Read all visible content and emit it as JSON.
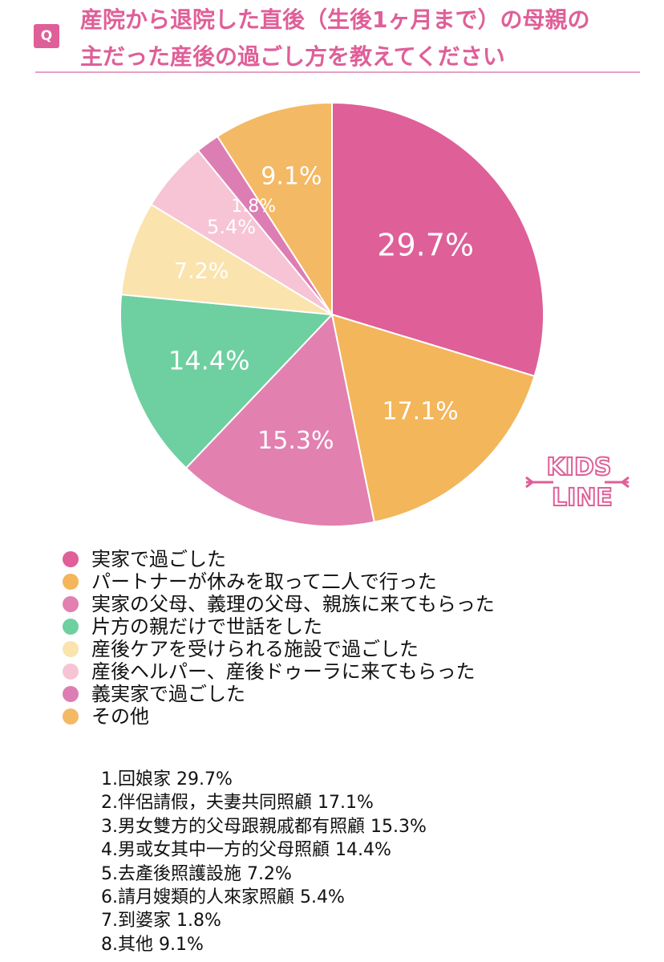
{
  "badge": "Q",
  "title_line1": "産院から退院した直後（生後1ヶ月まで）の母親の",
  "title_line2": "主だった産後の過ごし方を教えてください",
  "logo": {
    "line1": "KIDS",
    "line2": "LINE"
  },
  "colors": {
    "accent": "#df5f98",
    "rule": "#e7a0c4"
  },
  "chart_data": {
    "type": "pie",
    "title": "産院から退院した直後（生後1ヶ月まで）の母親の主だった産後の過ごし方を教えてください",
    "start_angle_deg": 0,
    "direction": "clockwise",
    "legend_position": "bottom-left",
    "slices": [
      {
        "label": "実家で過ごした",
        "value": 29.7,
        "display": "29.7%",
        "color": "#df5f98"
      },
      {
        "label": "パートナーが休みを取って二人で行った",
        "value": 17.1,
        "display": "17.1%",
        "color": "#f3b65a"
      },
      {
        "label": "実家の父母、義理の父母、親族に来てもらった",
        "value": 15.3,
        "display": "15.3%",
        "color": "#e280b0"
      },
      {
        "label": "片方の親だけで世話をした",
        "value": 14.4,
        "display": "14.4%",
        "color": "#6ecfa0"
      },
      {
        "label": "産後ケアを受けられる施設で過ごした",
        "value": 7.2,
        "display": "7.2%",
        "color": "#fae3ad"
      },
      {
        "label": "産後ヘルパー、産後ドゥーラに来てもらった",
        "value": 5.4,
        "display": "5.4%",
        "color": "#f6c4d4"
      },
      {
        "label": "義実家で過ごした",
        "value": 1.8,
        "display": "1.8%",
        "color": "#dc7eb3"
      },
      {
        "label": "その他",
        "value": 9.1,
        "display": "9.1%",
        "color": "#f3b964"
      }
    ]
  },
  "translations": [
    "1.回娘家 29.7%",
    "2.伴侶請假，夫妻共同照顧 17.1%",
    "3.男女雙方的父母跟親戚都有照顧 15.3%",
    "4.男或女其中一方的父母照顧 14.4%",
    "5.去產後照護設施 7.2%",
    "6.請月嫂類的人來家照顧 5.4%",
    "7.到婆家 1.8%",
    "8.其他 9.1%"
  ]
}
